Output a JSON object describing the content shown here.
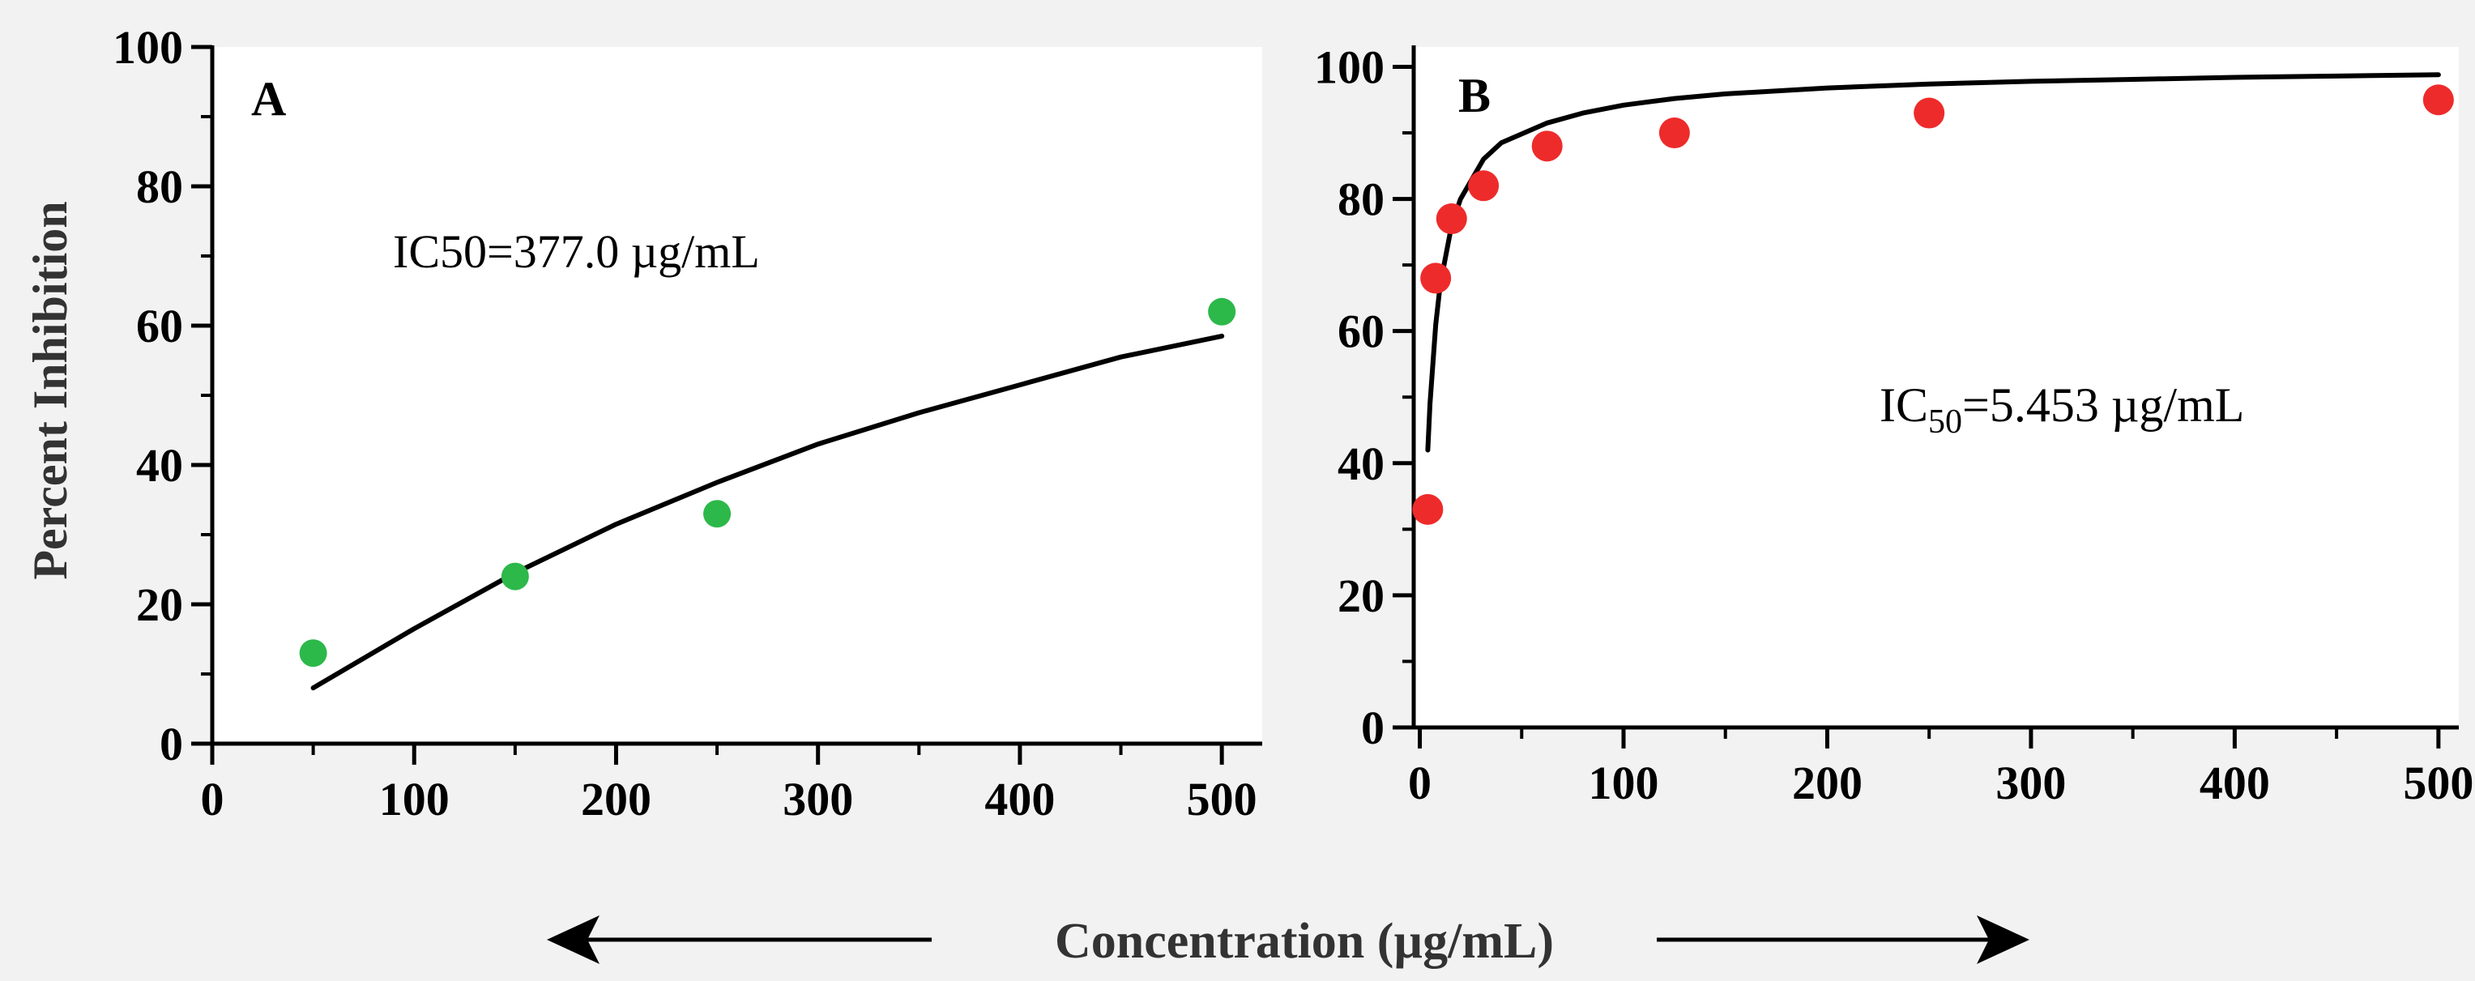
{
  "ylabel": "Percent Inhibition",
  "xlabel": "Concentration (µg/mL)",
  "chart_data": [
    {
      "type": "scatter",
      "panel": "A",
      "title": "",
      "annotation": "IC50=377.0 µg/mL",
      "marker_color": "#2db84a",
      "xlim": [
        0,
        520
      ],
      "ylim": [
        0,
        100
      ],
      "xticks": [
        0,
        100,
        200,
        300,
        400,
        500
      ],
      "yticks": [
        0,
        20,
        40,
        60,
        80,
        100
      ],
      "series": [
        {
          "name": "data",
          "x": [
            50,
            150,
            250,
            500
          ],
          "y": [
            13,
            24,
            33,
            62
          ]
        }
      ],
      "fit": {
        "x": [
          50,
          100,
          150,
          200,
          250,
          300,
          350,
          400,
          450,
          500
        ],
        "y": [
          8,
          16.5,
          24.5,
          31.5,
          37.5,
          43,
          47.5,
          51.5,
          55.5,
          58.5
        ]
      }
    },
    {
      "type": "scatter",
      "panel": "B",
      "title": "",
      "annotation_main": "IC",
      "annotation_sub": "50",
      "annotation_rest": "=5.453 µg/mL",
      "marker_color": "#ee2b2b",
      "xlim": [
        -3,
        510
      ],
      "ylim": [
        0,
        103
      ],
      "xticks": [
        0,
        100,
        200,
        300,
        400,
        500
      ],
      "yticks": [
        0,
        20,
        40,
        60,
        80,
        100
      ],
      "series": [
        {
          "name": "data",
          "x": [
            3.9,
            7.8,
            15.6,
            31.25,
            62.5,
            125,
            250,
            500
          ],
          "y": [
            33,
            68,
            77,
            82,
            88,
            90,
            93,
            95
          ]
        }
      ],
      "fit": {
        "x": [
          3.9,
          5,
          7.8,
          10,
          15.6,
          20,
          31.25,
          40,
          62.5,
          80,
          100,
          125,
          150,
          200,
          250,
          300,
          350,
          400,
          450,
          500
        ],
        "y": [
          42,
          49,
          61,
          67,
          76,
          80,
          86,
          88.5,
          91.5,
          93,
          94.2,
          95.2,
          95.9,
          96.8,
          97.4,
          97.8,
          98.1,
          98.4,
          98.6,
          98.8
        ]
      }
    }
  ]
}
